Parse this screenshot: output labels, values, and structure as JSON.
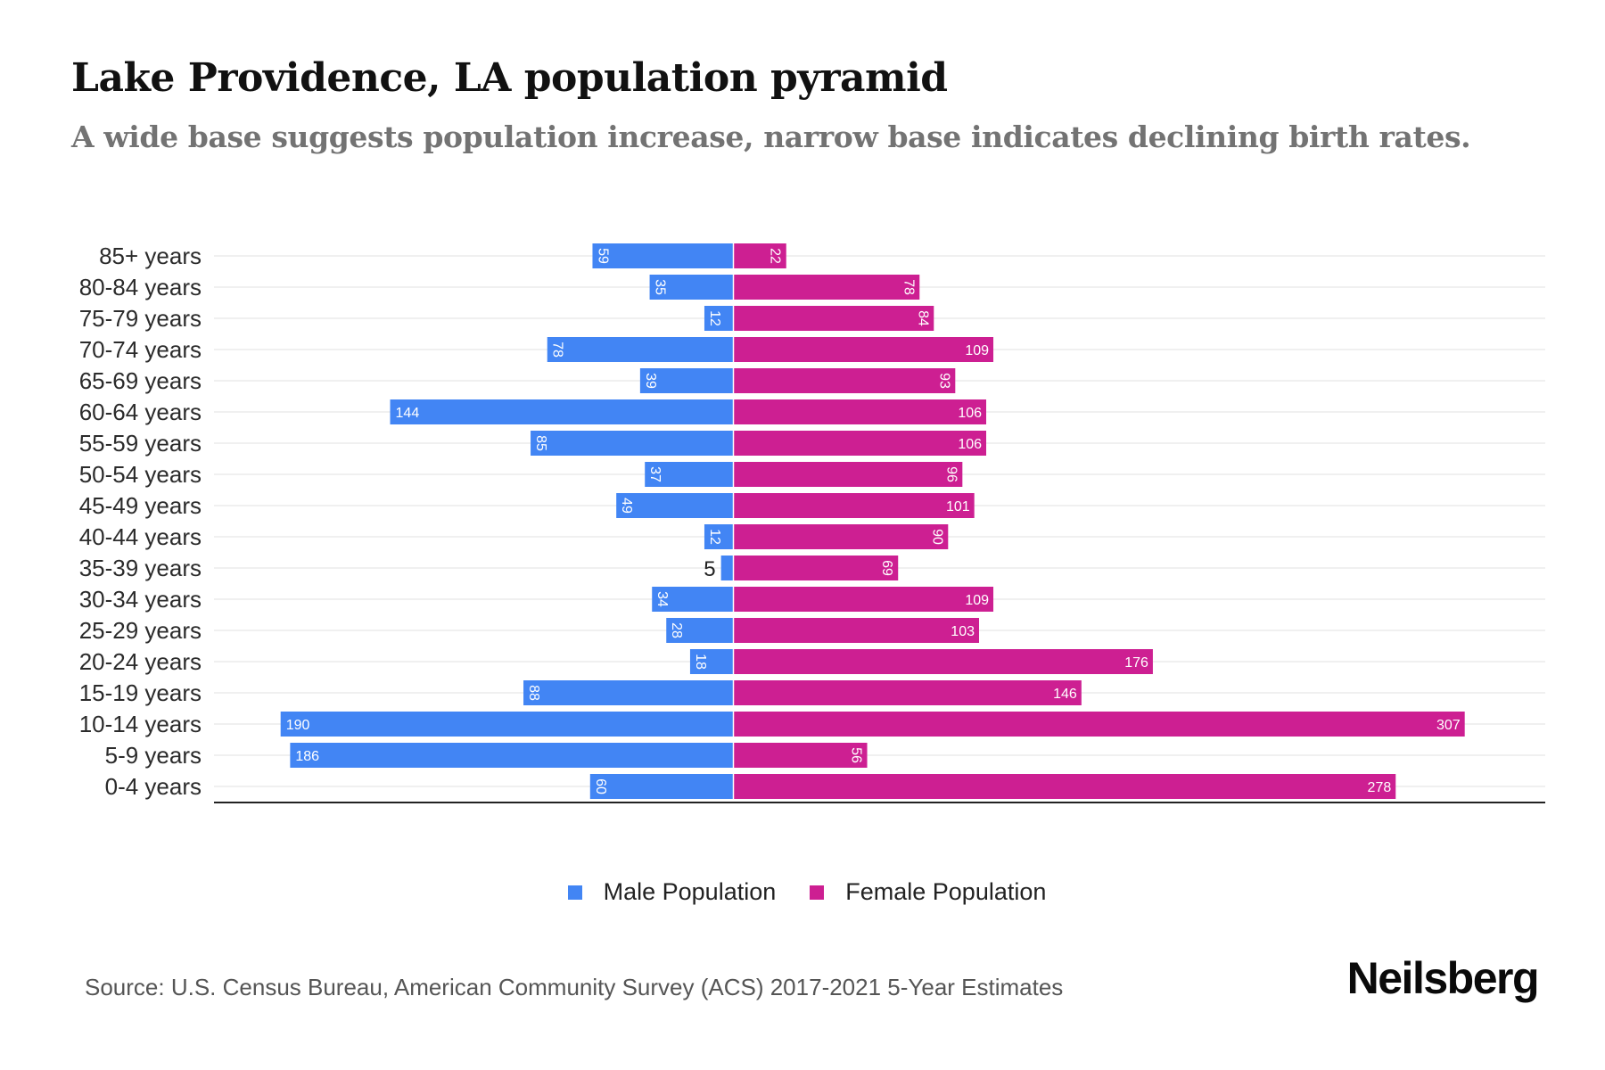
{
  "header": {
    "title": "Lake Providence, LA population pyramid",
    "subtitle": "A wide base suggests population increase, narrow base indicates declining birth rates."
  },
  "footer": {
    "source": "Source: U.S. Census Bureau, American Community Survey (ACS) 2017-2021 5-Year Estimates",
    "brand": "Neilsberg"
  },
  "legend": {
    "male_label": "Male Population",
    "female_label": "Female Population"
  },
  "colors": {
    "male": "#4285F4",
    "female": "#CD1F92",
    "grid": "#ececec",
    "axis": "#222222"
  },
  "chart_data": {
    "type": "bar",
    "orientation": "horizontal-diverging",
    "title": "Lake Providence, LA population pyramid",
    "subtitle": "A wide base suggests population increase, narrow base indicates declining birth rates.",
    "xlabel": "",
    "ylabel": "",
    "grid": true,
    "legend_position": "bottom-center",
    "categories": [
      "85+ years",
      "80-84 years",
      "75-79 years",
      "70-74 years",
      "65-69 years",
      "60-64 years",
      "55-59 years",
      "50-54 years",
      "45-49 years",
      "40-44 years",
      "35-39 years",
      "30-34 years",
      "25-29 years",
      "20-24 years",
      "15-19 years",
      "10-14 years",
      "5-9 years",
      "0-4 years"
    ],
    "series": [
      {
        "name": "Male Population",
        "side": "left",
        "values": [
          59,
          35,
          12,
          78,
          39,
          144,
          85,
          37,
          49,
          12,
          5,
          34,
          28,
          18,
          88,
          190,
          186,
          60
        ]
      },
      {
        "name": "Female Population",
        "side": "right",
        "values": [
          22,
          78,
          84,
          109,
          93,
          106,
          106,
          96,
          101,
          90,
          69,
          109,
          103,
          176,
          146,
          307,
          56,
          278
        ]
      }
    ],
    "xlim": [
      -190,
      307
    ]
  }
}
